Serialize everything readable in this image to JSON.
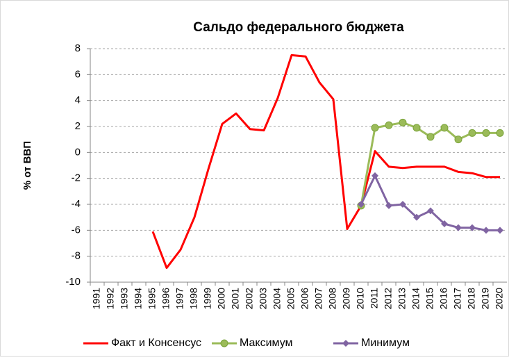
{
  "chart_data": {
    "type": "line",
    "title": "Сальдо федерального бюджета",
    "y_label": "% от ВВП",
    "categories": [
      "1991",
      "1992",
      "1993",
      "1994",
      "1995",
      "1996",
      "1997",
      "1998",
      "1999",
      "2000",
      "2001",
      "2002",
      "2003",
      "2004",
      "2005",
      "2006",
      "2007",
      "2008",
      "2009",
      "2010",
      "2011",
      "2012",
      "2013",
      "2014",
      "2015",
      "2016",
      "2017",
      "2018",
      "2019",
      "2020"
    ],
    "series": [
      {
        "name": "Факт и Консенсус",
        "color": "#ff0000",
        "marker": "none",
        "values": [
          null,
          null,
          null,
          null,
          -6.1,
          -8.9,
          -7.5,
          -5.0,
          -1.3,
          2.2,
          3.0,
          1.8,
          1.7,
          4.2,
          7.5,
          7.4,
          5.4,
          4.1,
          -5.9,
          -4.1,
          0.1,
          -1.1,
          -1.2,
          -1.1,
          -1.1,
          -1.1,
          -1.5,
          -1.6,
          -1.9,
          -1.9
        ]
      },
      {
        "name": "Максимум",
        "color": "#9bbb59",
        "marker": "circle",
        "values": [
          null,
          null,
          null,
          null,
          null,
          null,
          null,
          null,
          null,
          null,
          null,
          null,
          null,
          null,
          null,
          null,
          null,
          null,
          null,
          -4.1,
          1.9,
          2.1,
          2.3,
          1.9,
          1.2,
          1.9,
          1.0,
          1.5,
          1.5,
          1.5
        ]
      },
      {
        "name": "Минимум",
        "color": "#8064a2",
        "marker": "diamond",
        "values": [
          null,
          null,
          null,
          null,
          null,
          null,
          null,
          null,
          null,
          null,
          null,
          null,
          null,
          null,
          null,
          null,
          null,
          null,
          null,
          -4.0,
          -1.8,
          -4.1,
          -4.0,
          -5.0,
          -4.5,
          -5.5,
          -5.8,
          -5.8,
          -6.0,
          -6.0
        ]
      }
    ],
    "ylim": [
      -10,
      8
    ],
    "yticks": [
      -10,
      -8,
      -6,
      -4,
      -2,
      0,
      2,
      4,
      6,
      8
    ],
    "grid": true,
    "legend": "bottom"
  }
}
